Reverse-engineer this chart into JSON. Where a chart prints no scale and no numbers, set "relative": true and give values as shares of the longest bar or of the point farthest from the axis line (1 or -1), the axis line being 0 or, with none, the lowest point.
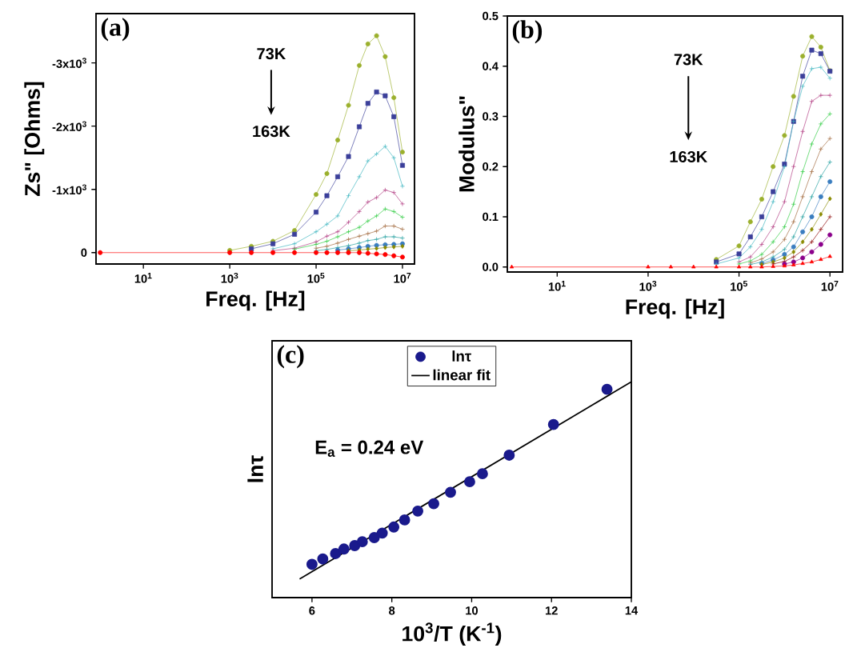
{
  "chart_data": [
    {
      "type": "line",
      "title": "(a)",
      "xlabel": "Freq. [Hz]",
      "ylabel": "Zs\" [Ohms]",
      "log": "x",
      "grid": false,
      "legend": false,
      "line_style": "solid",
      "annotations": [
        "73K",
        "163K"
      ],
      "xlim": [
        0.8,
        19000000
      ],
      "xticks": [
        {
          "value": 10,
          "label": "10$^{1}$"
        },
        {
          "value": 1000,
          "label": "10$^{3}$"
        },
        {
          "value": 100000,
          "label": "10$^{5}$"
        },
        {
          "value": 10000000,
          "label": "10$^{7}$"
        }
      ],
      "ylim": [
        180,
        -3780
      ],
      "yticks": [
        0,
        {
          "value": -1000,
          "label": "-1x10$^{3}$"
        },
        {
          "value": -2000,
          "label": "-2x10$^{3}$"
        },
        {
          "value": -3000,
          "label": "-3x10$^{3}$"
        }
      ],
      "x": [
        1,
        1000,
        3162,
        10000,
        31623,
        100000,
        177828,
        316228,
        562341,
        1000000,
        1584893,
        2511886,
        3981072,
        6309573,
        10000000
      ],
      "series": [
        {
          "color": "#9bb02d",
          "marker": "circle",
          "values": [
            null,
            -35,
            -100,
            -180,
            -350,
            -920,
            -1250,
            -1780,
            -2330,
            -2960,
            -3300,
            -3430,
            -3100,
            -2450,
            -1590
          ]
        },
        {
          "color": "#3b3f9a",
          "marker": "square",
          "values": [
            null,
            null,
            -60,
            -140,
            -290,
            -640,
            -900,
            -1200,
            -1520,
            -1990,
            -2360,
            -2540,
            -2480,
            -2150,
            -1380
          ]
        },
        {
          "color": "#3cb5c0",
          "marker": "cross",
          "values": [
            null,
            null,
            null,
            -60,
            -140,
            -330,
            -450,
            -580,
            -900,
            -1200,
            -1450,
            -1560,
            -1680,
            -1500,
            -1050
          ]
        },
        {
          "color": "#b03a80",
          "marker": "cross",
          "values": [
            null,
            null,
            null,
            -30,
            -70,
            -170,
            -260,
            -330,
            -480,
            -650,
            -800,
            -870,
            -990,
            -950,
            -770
          ]
        },
        {
          "color": "#2ecc40",
          "marker": "cross",
          "values": [
            null,
            null,
            null,
            null,
            -55,
            -130,
            -180,
            -250,
            -330,
            -400,
            -500,
            -580,
            -690,
            -650,
            -560
          ]
        },
        {
          "color": "#a0673a",
          "marker": "cross",
          "values": [
            null,
            null,
            null,
            null,
            null,
            -70,
            -100,
            -150,
            -210,
            -260,
            -300,
            -340,
            -420,
            -420,
            -370
          ]
        },
        {
          "color": "#1f9e9e",
          "marker": "cross",
          "values": [
            null,
            null,
            null,
            null,
            null,
            -30,
            -50,
            -80,
            -110,
            -150,
            -190,
            -210,
            -250,
            -250,
            -230
          ]
        },
        {
          "color": "#3a7dbf",
          "marker": "circle",
          "values": [
            null,
            null,
            null,
            null,
            null,
            null,
            null,
            -40,
            -60,
            -80,
            -100,
            -115,
            -125,
            -130,
            -140
          ]
        },
        {
          "color": "#8a8a00",
          "marker": "diamond",
          "values": [
            null,
            null,
            null,
            null,
            null,
            null,
            null,
            null,
            -30,
            -40,
            -55,
            -65,
            -80,
            -90,
            -100
          ]
        },
        {
          "color": "#ff0000",
          "marker": "circle",
          "values": [
            0,
            0,
            0,
            0,
            0,
            0,
            0,
            0,
            0,
            0,
            10,
            20,
            30,
            50,
            70
          ]
        }
      ]
    },
    {
      "type": "line",
      "title": "(b)",
      "xlabel": "Freq. [Hz]",
      "ylabel": "Modulus\"",
      "log": "x",
      "grid": false,
      "legend": false,
      "line_style": "solid",
      "annotations": [
        "73K",
        "163K"
      ],
      "xlim": [
        0.8,
        19000000
      ],
      "xticks": [
        {
          "value": 10,
          "label": "10$^{1}$"
        },
        {
          "value": 1000,
          "label": "10$^{3}$"
        },
        {
          "value": 100000,
          "label": "10$^{5}$"
        },
        {
          "value": 10000000,
          "label": "10$^{7}$"
        }
      ],
      "ylim": [
        -0.01,
        0.5
      ],
      "yticks": [
        {
          "value": 0,
          "label": "0.0"
        },
        0.1,
        0.2,
        0.3,
        0.4,
        0.5
      ],
      "x": [
        1,
        1000,
        3162,
        10000,
        31623,
        100000,
        177828,
        316228,
        562341,
        1000000,
        1584893,
        2511886,
        3981072,
        6309573,
        10000000
      ],
      "series": [
        {
          "color": "#9bb02d",
          "marker": "circle",
          "values": [
            null,
            null,
            null,
            null,
            0.015,
            0.042,
            0.09,
            0.135,
            0.2,
            0.262,
            0.34,
            0.42,
            0.459,
            0.438,
            0.391
          ]
        },
        {
          "color": "#3b3f9a",
          "marker": "square",
          "values": [
            null,
            null,
            null,
            null,
            0.01,
            0.026,
            0.06,
            0.1,
            0.15,
            0.205,
            0.29,
            0.38,
            0.432,
            0.425,
            0.39
          ]
        },
        {
          "color": "#3cb5c0",
          "marker": "cross",
          "values": [
            null,
            null,
            null,
            null,
            0.006,
            0.018,
            0.04,
            0.075,
            0.13,
            0.2,
            0.29,
            0.36,
            0.395,
            0.398,
            0.376
          ]
        },
        {
          "color": "#b03a80",
          "marker": "cross",
          "values": [
            null,
            null,
            null,
            null,
            null,
            0.01,
            0.02,
            0.045,
            0.08,
            0.13,
            0.2,
            0.27,
            0.33,
            0.342,
            0.342
          ]
        },
        {
          "color": "#2ecc40",
          "marker": "cross",
          "values": [
            null,
            null,
            null,
            null,
            null,
            0.006,
            0.012,
            0.025,
            0.05,
            0.08,
            0.125,
            0.19,
            0.245,
            0.285,
            0.305
          ]
        },
        {
          "color": "#a0673a",
          "marker": "cross",
          "values": [
            null,
            null,
            null,
            null,
            null,
            null,
            0.008,
            0.016,
            0.03,
            0.055,
            0.09,
            0.14,
            0.19,
            0.235,
            0.256
          ]
        },
        {
          "color": "#1f9e9e",
          "marker": "cross",
          "values": [
            null,
            null,
            null,
            null,
            null,
            null,
            0.005,
            0.01,
            0.02,
            0.035,
            0.06,
            0.1,
            0.14,
            0.18,
            0.209
          ]
        },
        {
          "color": "#3a7dbf",
          "marker": "circle",
          "values": [
            null,
            null,
            null,
            null,
            null,
            null,
            null,
            0.007,
            0.014,
            0.025,
            0.04,
            0.07,
            0.1,
            0.14,
            0.17
          ]
        },
        {
          "color": "#8a8a00",
          "marker": "diamond",
          "values": [
            null,
            null,
            null,
            null,
            null,
            null,
            null,
            0.005,
            0.01,
            0.018,
            0.03,
            0.05,
            0.075,
            0.105,
            0.136
          ]
        },
        {
          "color": "#8b0000",
          "marker": "cross",
          "values": [
            null,
            null,
            null,
            null,
            null,
            null,
            null,
            null,
            0.006,
            0.011,
            0.02,
            0.033,
            0.05,
            0.075,
            0.1
          ]
        },
        {
          "color": "#8b008b",
          "marker": "circle",
          "values": [
            null,
            null,
            null,
            null,
            null,
            null,
            null,
            null,
            null,
            0.006,
            0.01,
            0.018,
            0.03,
            0.045,
            0.064
          ]
        },
        {
          "color": "#ff0000",
          "marker": "triangle",
          "values": [
            0,
            0,
            0,
            0,
            0,
            0,
            0,
            0,
            0.001,
            0.002,
            0.004,
            0.007,
            0.01,
            0.015,
            0.021
          ]
        }
      ]
    },
    {
      "type": "scatter",
      "title": "(c)",
      "xlabel": "10$^{3}$/T (K$^{-1}$)",
      "ylabel": "lnτ",
      "relative": true,
      "tick_labels": "x",
      "grid": false,
      "legend": "top",
      "annotations": [
        "E$_{a}$ = 0.24 eV"
      ],
      "xlim": [
        5,
        14
      ],
      "xticks": [
        6,
        8,
        10,
        12,
        14
      ],
      "series": [
        {
          "name": "lnτ",
          "type": "scatter",
          "marker": "circle",
          "color": "#1a1a8c",
          "x": [
            6.0,
            6.27,
            6.59,
            6.8,
            7.07,
            7.26,
            7.56,
            7.76,
            8.05,
            8.32,
            8.65,
            9.05,
            9.47,
            9.95,
            10.27,
            10.94,
            12.05,
            13.39
          ],
          "values": [
            0.154,
            0.179,
            0.204,
            0.225,
            0.241,
            0.259,
            0.278,
            0.299,
            0.327,
            0.36,
            0.401,
            0.435,
            0.488,
            0.537,
            0.574,
            0.66,
            0.802,
            0.965
          ]
        },
        {
          "name": "linear fit",
          "type": "line",
          "marker": "none",
          "line_style": "solid",
          "color": "#000000",
          "x": [
            5.69,
            14
          ],
          "values": [
            0.086,
            1
          ]
        }
      ]
    }
  ]
}
